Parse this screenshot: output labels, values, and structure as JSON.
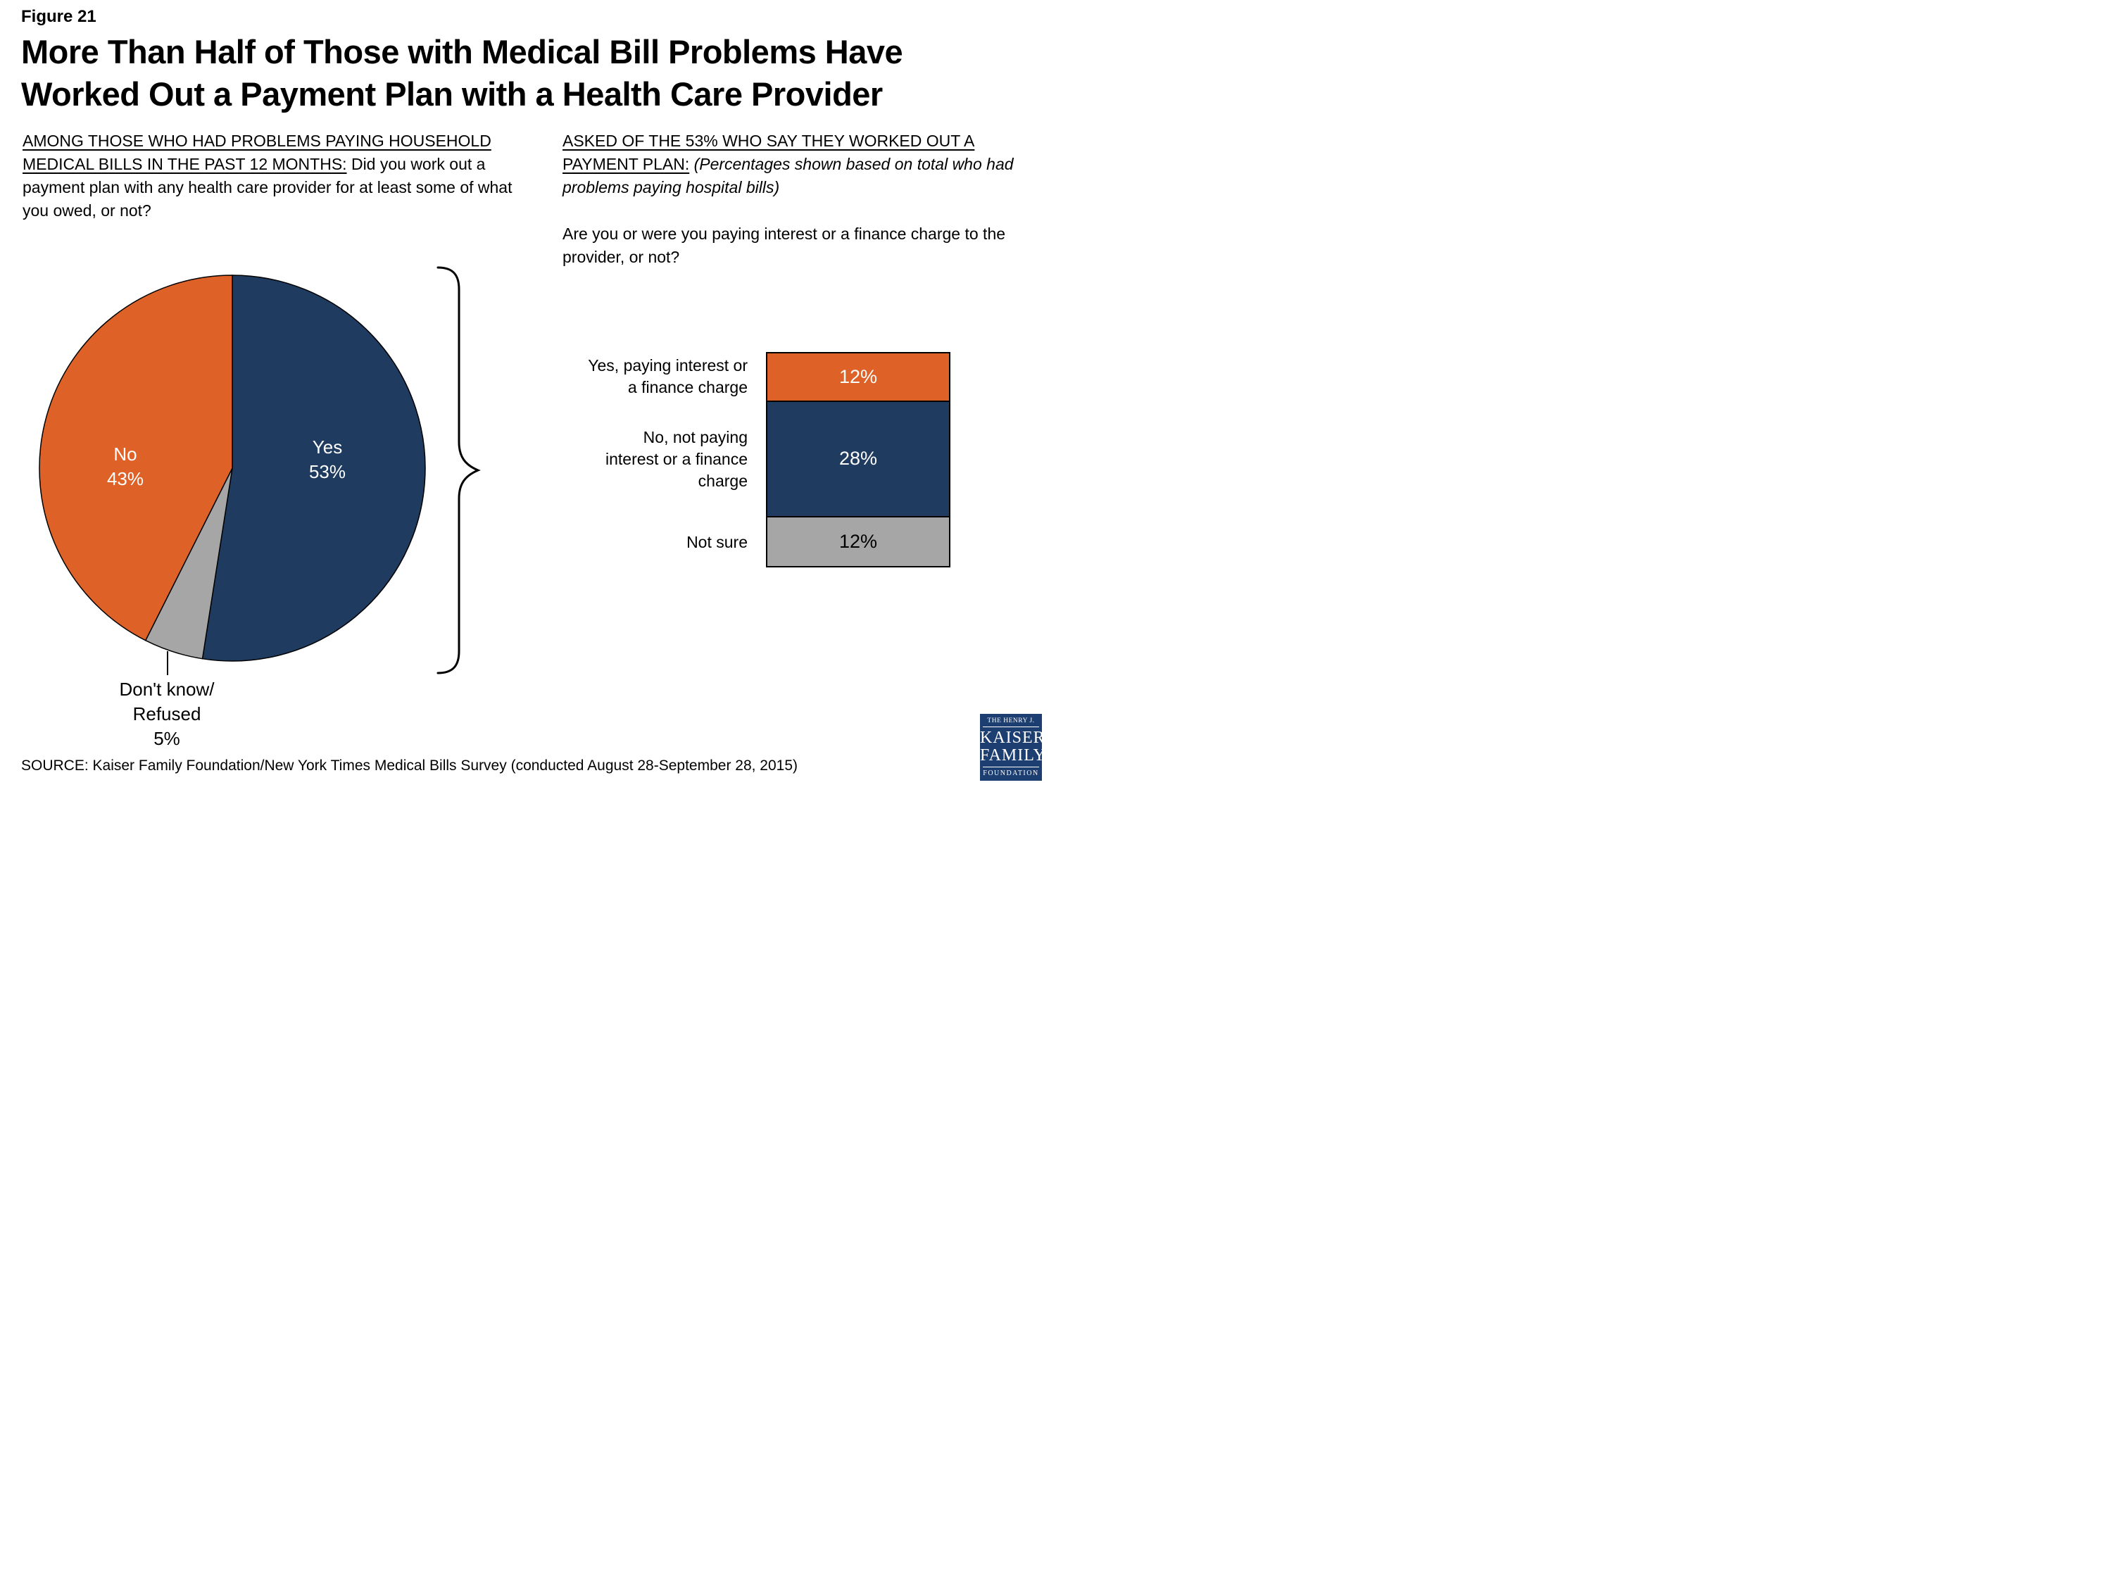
{
  "figure_label": "Figure 21",
  "title": {
    "line1": "More Than Half of Those with Medical Bill Problems Have",
    "line2": "Worked Out a Payment Plan with a Health Care Provider"
  },
  "questions": {
    "left": {
      "heading": "AMONG THOSE WHO HAD PROBLEMS PAYING HOUSEHOLD MEDICAL BILLS IN THE PAST 12 MONTHS:",
      "body": " Did you work out a payment plan with any health care provider for at least some of what you owed, or not?"
    },
    "right": {
      "heading": "ASKED OF THE 53%  WHO SAY THEY WORKED OUT A PAYMENT PLAN:",
      "note": " (Percentages shown based on total who had problems paying hospital bills)",
      "question": "Are you or were you paying interest or a finance charge to the provider, or not?"
    }
  },
  "source": "SOURCE: Kaiser Family Foundation/New York Times Medical Bills Survey (conducted August 28-September 28, 2015)",
  "logo": {
    "top": "THE HENRY J.",
    "line1": "KAISER",
    "line2": "FAMILY",
    "bottom": "FOUNDATION"
  },
  "colors": {
    "navy": "#1F3B60",
    "orange": "#DE6227",
    "gray": "#A6A6A6",
    "logo_navy": "#1C3E70",
    "text": "#000000",
    "white": "#FFFFFF"
  },
  "chart_data": [
    {
      "type": "pie",
      "start_angle": "top",
      "direction": "clockwise",
      "slices": [
        {
          "label": "Yes",
          "value": 53,
          "value_label": "53%",
          "color": "navy",
          "text_color": "#FFFFFF"
        },
        {
          "label": "Don't know/Refused",
          "value": 5,
          "value_label": "5%",
          "color": "gray",
          "text_color": "#000000"
        },
        {
          "label": "No",
          "value": 43,
          "value_label": "43%",
          "color": "orange",
          "text_color": "#FFFFFF"
        }
      ],
      "outside_label_text": "Don't know/\nRefused\n5%"
    },
    {
      "type": "bar",
      "stacked": true,
      "unit": "percent",
      "categories": [
        "Yes, paying interest or\na finance charge",
        "No, not paying\ninterest or a finance\ncharge",
        "Not sure"
      ],
      "values": [
        12,
        28,
        12
      ],
      "value_labels": [
        "12%",
        "28%",
        "12%"
      ],
      "colors": [
        "orange",
        "navy",
        "gray"
      ],
      "value_text_colors": [
        "#FFFFFF",
        "#FFFFFF",
        "#000000"
      ]
    }
  ]
}
